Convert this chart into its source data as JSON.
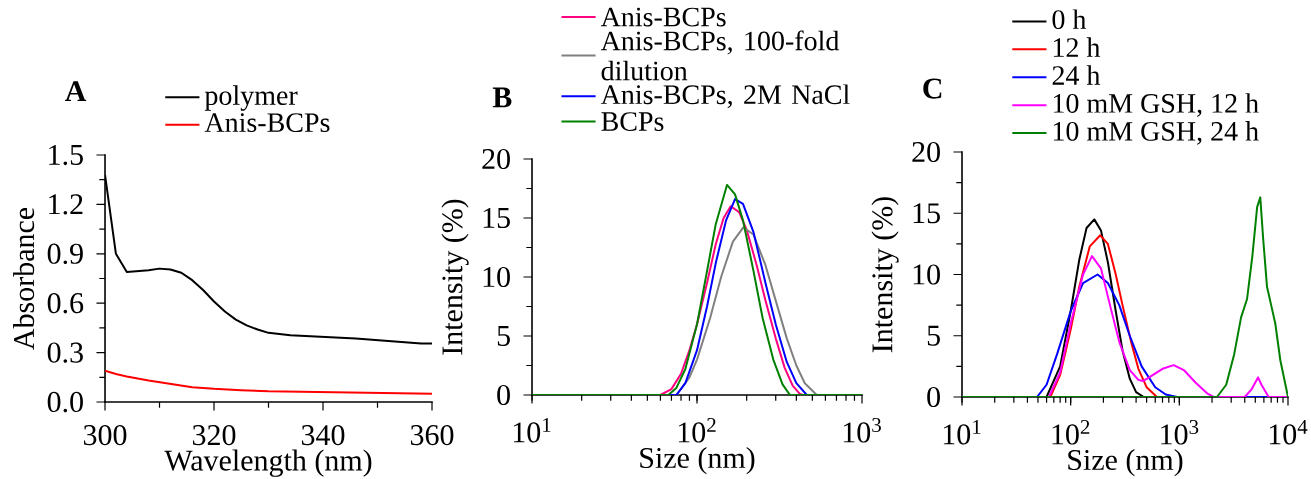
{
  "chart_data": [
    {
      "type": "line",
      "title": "A",
      "xlabel": "Wavelength (nm)",
      "ylabel": "Absorbance",
      "xlim": [
        300,
        360
      ],
      "ylim": [
        0,
        1.5
      ],
      "xticks": [
        300,
        320,
        340,
        360
      ],
      "yticks": [
        {
          "value": 0,
          "label": "0.0"
        },
        0.3,
        0.6,
        0.9,
        1.2,
        1.5
      ],
      "grid": false,
      "legend": "top",
      "marker": "none",
      "line_style": "solid",
      "series": [
        {
          "name": "polymer",
          "color": "#000000",
          "x": [
            300,
            302,
            304,
            306,
            308,
            310,
            312,
            314,
            316,
            318,
            320,
            322,
            324,
            326,
            328,
            330,
            334,
            340,
            346,
            350,
            354,
            358,
            360
          ],
          "values": [
            1.38,
            0.9,
            0.79,
            0.795,
            0.8,
            0.81,
            0.805,
            0.785,
            0.74,
            0.68,
            0.61,
            0.55,
            0.5,
            0.465,
            0.44,
            0.42,
            0.405,
            0.395,
            0.385,
            0.375,
            0.365,
            0.355,
            0.355
          ]
        },
        {
          "name": "Anis-BCPs",
          "color": "#ff0000",
          "x": [
            300,
            302,
            304,
            308,
            312,
            316,
            320,
            325,
            330,
            340,
            350,
            360
          ],
          "values": [
            0.19,
            0.17,
            0.155,
            0.13,
            0.11,
            0.09,
            0.08,
            0.072,
            0.065,
            0.06,
            0.055,
            0.05
          ]
        }
      ]
    },
    {
      "type": "line",
      "title": "B",
      "xlabel": "Size (nm)",
      "ylabel": "Intensity (%)",
      "log": "x",
      "xlim": [
        10,
        1000
      ],
      "ylim": [
        0,
        20
      ],
      "xticks": [
        {
          "value": 10,
          "label": "10$^{1}$"
        },
        {
          "value": 100,
          "label": "10$^{2}$"
        },
        {
          "value": 1000,
          "label": "10$^{3}$"
        }
      ],
      "yticks": [
        0,
        5,
        10,
        15,
        20
      ],
      "grid": false,
      "legend": "top",
      "marker": "none",
      "line_style": "solid",
      "series": [
        {
          "name": "Anis-BCPs",
          "color": "#ff0080",
          "x": [
            10,
            60,
            70,
            80,
            90,
            100,
            115,
            130,
            145,
            160,
            180,
            200,
            230,
            260,
            300,
            340,
            380,
            420,
            440,
            1000
          ],
          "values": [
            0,
            0,
            0.5,
            1.8,
            3.8,
            6,
            9.5,
            12.8,
            15,
            16,
            15.5,
            14,
            11,
            8,
            4.8,
            2.3,
            0.8,
            0.1,
            0,
            0
          ]
        },
        {
          "name": "Anis-BCPs, 100-fold dilution",
          "color": "#808080",
          "x": [
            10,
            75,
            90,
            100,
            120,
            140,
            165,
            191,
            220,
            260,
            300,
            350,
            400,
            450,
            532,
            1000
          ],
          "values": [
            0,
            0,
            1.5,
            3,
            6.5,
            10,
            13,
            14.2,
            13.6,
            11,
            8,
            4.8,
            2.5,
            1,
            0,
            0
          ]
        },
        {
          "name": "Anis-BCPs, 2M NaCl",
          "color": "#0000ff",
          "x": [
            10,
            75,
            85,
            100,
            115,
            130,
            150,
            170,
            190,
            220,
            260,
            300,
            350,
            400,
            463,
            1000
          ],
          "values": [
            0,
            0,
            1,
            3.8,
            7.5,
            11.2,
            14.8,
            16.6,
            16.2,
            13.8,
            9.5,
            6,
            2.8,
            1,
            0,
            0
          ]
        },
        {
          "name": "BCPs",
          "color": "#008000",
          "x": [
            10,
            67,
            75,
            85,
            100,
            115,
            130,
            152,
            170,
            190,
            220,
            250,
            290,
            330,
            366,
            1000
          ],
          "values": [
            0,
            0,
            0.6,
            2.2,
            6,
            10.5,
            14.5,
            17.8,
            17,
            14.8,
            10.5,
            6.5,
            3,
            0.9,
            0,
            0
          ]
        }
      ]
    },
    {
      "type": "line",
      "title": "C",
      "xlabel": "Size (nm)",
      "ylabel": "Intensity (%)",
      "log": "x",
      "xlim": [
        10,
        10000
      ],
      "ylim": [
        0,
        20
      ],
      "xticks": [
        {
          "value": 10,
          "label": "10$^{1}$"
        },
        {
          "value": 100,
          "label": "10$^{2}$"
        },
        {
          "value": 1000,
          "label": "10$^{3}$"
        },
        {
          "value": 10000,
          "label": "10$^{4}$"
        }
      ],
      "yticks": [
        0,
        5,
        10,
        15,
        20
      ],
      "grid": false,
      "legend": "top",
      "marker": "none",
      "line_style": "solid",
      "series": [
        {
          "name": "0 h",
          "color": "#000000",
          "x": [
            10,
            60,
            80,
            100,
            120,
            140,
            165,
            190,
            220,
            260,
            300,
            350,
            400,
            470,
            10000
          ],
          "values": [
            0,
            0,
            2.5,
            7,
            11.2,
            13.8,
            14.5,
            13.6,
            11,
            7,
            3.8,
            1.5,
            0.4,
            0,
            0
          ]
        },
        {
          "name": "12 h",
          "color": "#ff0000",
          "x": [
            10,
            65,
            80,
            100,
            120,
            150,
            187,
            220,
            260,
            300,
            360,
            420,
            500,
            622,
            10000
          ],
          "values": [
            0,
            0,
            1.8,
            5.5,
            9,
            12.3,
            13.2,
            12.5,
            10,
            7.5,
            4.5,
            2.3,
            0.8,
            0,
            0
          ]
        },
        {
          "name": "24 h",
          "color": "#0000ff",
          "x": [
            10,
            49,
            60,
            75,
            100,
            130,
            177,
            220,
            280,
            350,
            450,
            600,
            750,
            955,
            10000
          ],
          "values": [
            0,
            0,
            1,
            3.5,
            7,
            9.3,
            10,
            9.3,
            7.5,
            5,
            2.5,
            0.8,
            0.2,
            0,
            0
          ]
        },
        {
          "name": "10 mM GSH, 12 h",
          "color": "#ff00ff",
          "x": [
            10,
            63,
            80,
            100,
            130,
            157,
            190,
            230,
            280,
            350,
            420,
            463,
            550,
            700,
            887,
            1100,
            1400,
            1800,
            2070,
            4000,
            4600,
            5300,
            5700,
            6640,
            10000
          ],
          "values": [
            0,
            0,
            2,
            6,
            10,
            11.5,
            10.5,
            7.5,
            4.5,
            2.2,
            1.4,
            1.3,
            1.7,
            2.3,
            2.6,
            2.2,
            1.2,
            0.3,
            0,
            0,
            0.6,
            1.6,
            1,
            0,
            0
          ]
        },
        {
          "name": "10 mM GSH, 24 h",
          "color": "#008000",
          "x": [
            10,
            2220,
            2700,
            3200,
            3700,
            4200,
            4700,
            5200,
            5560,
            5900,
            6410,
            7000,
            7640,
            8500,
            10000
          ],
          "values": [
            0,
            0,
            1,
            3.5,
            6.5,
            8,
            11.5,
            15.5,
            16.3,
            13,
            9,
            7.5,
            6,
            3,
            0
          ]
        }
      ]
    }
  ]
}
